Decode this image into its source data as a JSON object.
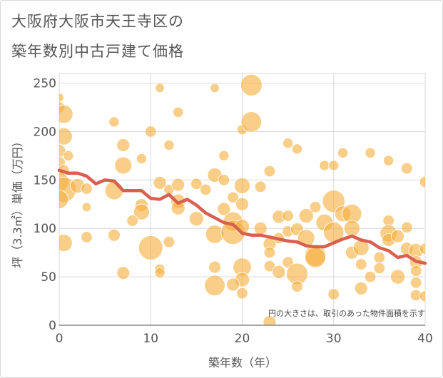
{
  "title": {
    "line1": "大阪府大阪市天王寺区の",
    "line2": "築年数別中古戸建て価格"
  },
  "colors": {
    "bubble": "#f5b041",
    "line": "#d9604f",
    "grid": "#d8d8d8",
    "text": "#555555"
  },
  "chart_data": {
    "type": "scatter",
    "xlabel": "築年数（年）",
    "ylabel": "坪（3.3㎡）単価（万円）",
    "xlim": [
      0,
      40
    ],
    "ylim": [
      0,
      260
    ],
    "x_ticks": [
      "0",
      "10",
      "20",
      "30",
      "40"
    ],
    "y_ticks": [
      "0",
      "50",
      "100",
      "150",
      "200",
      "250"
    ],
    "grid": true,
    "annotation": "円の大きさは、取引のあった物件面積を示す",
    "trend_line": {
      "x": [
        0,
        1,
        2,
        3,
        4,
        5,
        6,
        7,
        8,
        9,
        10,
        11,
        12,
        13,
        14,
        15,
        16,
        17,
        18,
        19,
        20,
        21,
        22,
        23,
        24,
        25,
        26,
        27,
        28,
        29,
        30,
        31,
        32,
        33,
        34,
        35,
        36,
        37,
        38,
        39,
        40
      ],
      "y": [
        160,
        157,
        157,
        154,
        146,
        150,
        149,
        139,
        139,
        139,
        131,
        130,
        135,
        126,
        130,
        124,
        116,
        111,
        106,
        104,
        95,
        93,
        93,
        91,
        89,
        87,
        86,
        82,
        81,
        81,
        85,
        89,
        92,
        88,
        86,
        80,
        77,
        70,
        72,
        66,
        64
      ]
    },
    "bubbles": [
      [
        0,
        235,
        4
      ],
      [
        0,
        225,
        6
      ],
      [
        0.5,
        218,
        16
      ],
      [
        0.5,
        195,
        14
      ],
      [
        0,
        180,
        8
      ],
      [
        1,
        175,
        5
      ],
      [
        0,
        168,
        7
      ],
      [
        0.5,
        160,
        6
      ],
      [
        0,
        148,
        18
      ],
      [
        0.5,
        140,
        30
      ],
      [
        0,
        130,
        16
      ],
      [
        2,
        144,
        10
      ],
      [
        3,
        141,
        6
      ],
      [
        0.5,
        85,
        14
      ],
      [
        3,
        122,
        4
      ],
      [
        3,
        91,
        6
      ],
      [
        6,
        210,
        5
      ],
      [
        7,
        186,
        8
      ],
      [
        7,
        165,
        14
      ],
      [
        6,
        139,
        16
      ],
      [
        6,
        93,
        7
      ],
      [
        7,
        54,
        8
      ],
      [
        9,
        172,
        5
      ],
      [
        10,
        200,
        6
      ],
      [
        9,
        124,
        8
      ],
      [
        9,
        117,
        12
      ],
      [
        8,
        108,
        6
      ],
      [
        10,
        80,
        28
      ],
      [
        11,
        245,
        4
      ],
      [
        11,
        147,
        8
      ],
      [
        11,
        58,
        5
      ],
      [
        11,
        54,
        5
      ],
      [
        12,
        186,
        5
      ],
      [
        12,
        140,
        5
      ],
      [
        12,
        86,
        6
      ],
      [
        13,
        220,
        5
      ],
      [
        13,
        145,
        8
      ],
      [
        13,
        128,
        10
      ],
      [
        13,
        121,
        9
      ],
      [
        15,
        146,
        6
      ],
      [
        16,
        140,
        6
      ],
      [
        15,
        110,
        10
      ],
      [
        17,
        245,
        4
      ],
      [
        17,
        155,
        10
      ],
      [
        18,
        175,
        5
      ],
      [
        18,
        150,
        6
      ],
      [
        18,
        120,
        8
      ],
      [
        17,
        94,
        16
      ],
      [
        17,
        60,
        7
      ],
      [
        17,
        41,
        20
      ],
      [
        19,
        132,
        6
      ],
      [
        19,
        107,
        18
      ],
      [
        19,
        96,
        28
      ],
      [
        20,
        202,
        5
      ],
      [
        20,
        144,
        12
      ],
      [
        20,
        125,
        8
      ],
      [
        21,
        248,
        22
      ],
      [
        21,
        210,
        20
      ],
      [
        20,
        102,
        10
      ],
      [
        20,
        60,
        16
      ],
      [
        20,
        47,
        10
      ],
      [
        19,
        42,
        8
      ],
      [
        20,
        33,
        6
      ],
      [
        22,
        143,
        6
      ],
      [
        22,
        100,
        8
      ],
      [
        23,
        159,
        6
      ],
      [
        23,
        84,
        8
      ],
      [
        23,
        75,
        6
      ],
      [
        23,
        61,
        6
      ],
      [
        23,
        3,
        8
      ],
      [
        24,
        112,
        8
      ],
      [
        24,
        90,
        6
      ],
      [
        24,
        55,
        8
      ],
      [
        25,
        188,
        5
      ],
      [
        25,
        113,
        6
      ],
      [
        25,
        97,
        6
      ],
      [
        25,
        65,
        6
      ],
      [
        26,
        182,
        5
      ],
      [
        26,
        99,
        8
      ],
      [
        26,
        53,
        22
      ],
      [
        26,
        40,
        6
      ],
      [
        27,
        113,
        10
      ],
      [
        27,
        90,
        14
      ],
      [
        28,
        122,
        6
      ],
      [
        28,
        72,
        22
      ],
      [
        28,
        70,
        20
      ],
      [
        29,
        165,
        5
      ],
      [
        29,
        106,
        14
      ],
      [
        30,
        165,
        5
      ],
      [
        30,
        128,
        24
      ],
      [
        30,
        96,
        20
      ],
      [
        30,
        32,
        6
      ],
      [
        31,
        178,
        5
      ],
      [
        31,
        115,
        12
      ],
      [
        32,
        115,
        18
      ],
      [
        32,
        100,
        12
      ],
      [
        32,
        75,
        8
      ],
      [
        33,
        80,
        12
      ],
      [
        33,
        63,
        6
      ],
      [
        33,
        38,
        8
      ],
      [
        34,
        178,
        5
      ],
      [
        34,
        50,
        6
      ],
      [
        35,
        70,
        6
      ],
      [
        35,
        59,
        6
      ],
      [
        36,
        170,
        5
      ],
      [
        36,
        108,
        6
      ],
      [
        36,
        95,
        14
      ],
      [
        36,
        88,
        8
      ],
      [
        37,
        92,
        8
      ],
      [
        37,
        50,
        10
      ],
      [
        38,
        162,
        6
      ],
      [
        38,
        101,
        6
      ],
      [
        38,
        79,
        8
      ],
      [
        39,
        77,
        10
      ],
      [
        39,
        65,
        8
      ],
      [
        39,
        56,
        6
      ],
      [
        39,
        44,
        6
      ],
      [
        39,
        31,
        6
      ],
      [
        40,
        148,
        6
      ],
      [
        40,
        79,
        6
      ],
      [
        40,
        30,
        6
      ]
    ]
  }
}
